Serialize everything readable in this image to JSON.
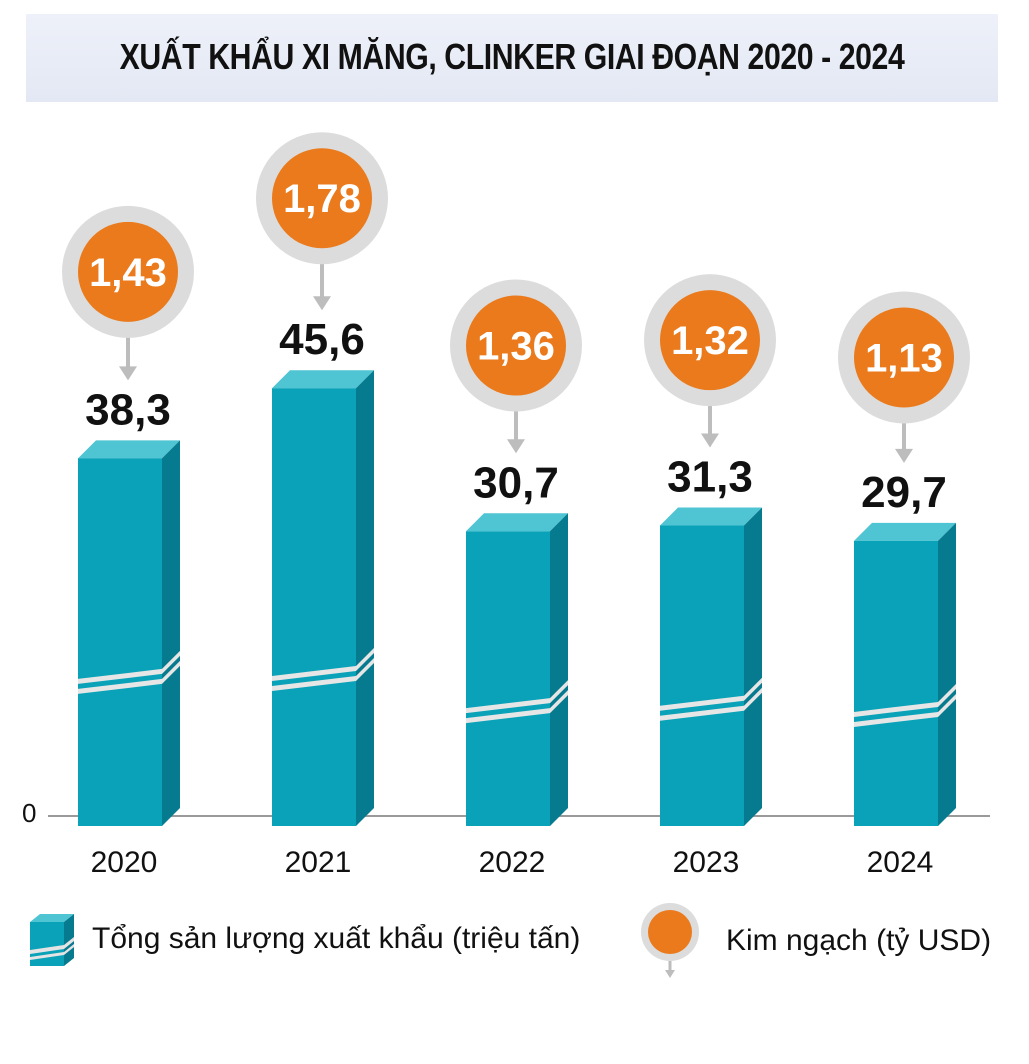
{
  "title": "XUẤT KHẨU XI MĂNG, CLINKER GIAI ĐOẠN 2020 - 2024",
  "axis": {
    "zero_label": "0"
  },
  "legend": {
    "volume_label": "Tổng sản lượng xuất khẩu (triệu tấn)",
    "value_label": "Kim ngạch (tỷ USD)"
  },
  "colors": {
    "bar": "#0aa2b8",
    "bar_side": "#067a8e",
    "bar_top": "#4fc4d2",
    "bubble": "#ea7a1b",
    "bubble_ring": "#dcdcdc"
  },
  "chart_data": {
    "type": "bar",
    "title": "XUẤT KHẨU XI MĂNG, CLINKER GIAI ĐOẠN 2020 - 2024",
    "categories": [
      "2020",
      "2021",
      "2022",
      "2023",
      "2024"
    ],
    "series": [
      {
        "name": "Tổng sản lượng xuất khẩu (triệu tấn)",
        "values": [
          38.3,
          45.6,
          30.7,
          31.3,
          29.7
        ],
        "labels": [
          "38,3",
          "45,6",
          "30,7",
          "31,3",
          "29,7"
        ]
      },
      {
        "name": "Kim ngạch (tỷ USD)",
        "values": [
          1.43,
          1.78,
          1.36,
          1.32,
          1.13
        ],
        "labels": [
          "1,43",
          "1,78",
          "1,36",
          "1,32",
          "1,13"
        ]
      }
    ],
    "ylim": [
      0,
      50
    ],
    "xlabel": "",
    "ylabel": "",
    "grid": false
  }
}
